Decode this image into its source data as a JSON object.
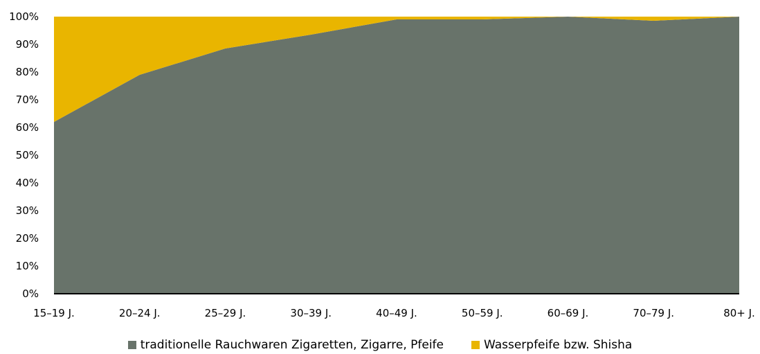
{
  "chart_data": {
    "type": "area",
    "stacked": true,
    "percent": true,
    "categories": [
      "15–19 J.",
      "20–24 J.",
      "25–29 J.",
      "30–39 J.",
      "40–49 J.",
      "50–59 J.",
      "60–69 J.",
      "70–79 J.",
      "80+ J."
    ],
    "series": [
      {
        "name": "traditionelle Rauchwaren Zigaretten, Zigarre, Pfeife",
        "color": "#68736a",
        "values": [
          62,
          79,
          88.5,
          93.5,
          99,
          99,
          100,
          98.5,
          100
        ]
      },
      {
        "name": "Wasserpfeife bzw. Shisha",
        "color": "#e9b500",
        "values": [
          38,
          21,
          11.5,
          6.5,
          1,
          1,
          0,
          1.5,
          0
        ]
      }
    ],
    "yticks": [
      "0%",
      "10%",
      "20%",
      "30%",
      "40%",
      "50%",
      "60%",
      "70%",
      "80%",
      "90%",
      "100%"
    ],
    "ylim": [
      0,
      100
    ],
    "grid": false,
    "legend_position": "bottom"
  }
}
